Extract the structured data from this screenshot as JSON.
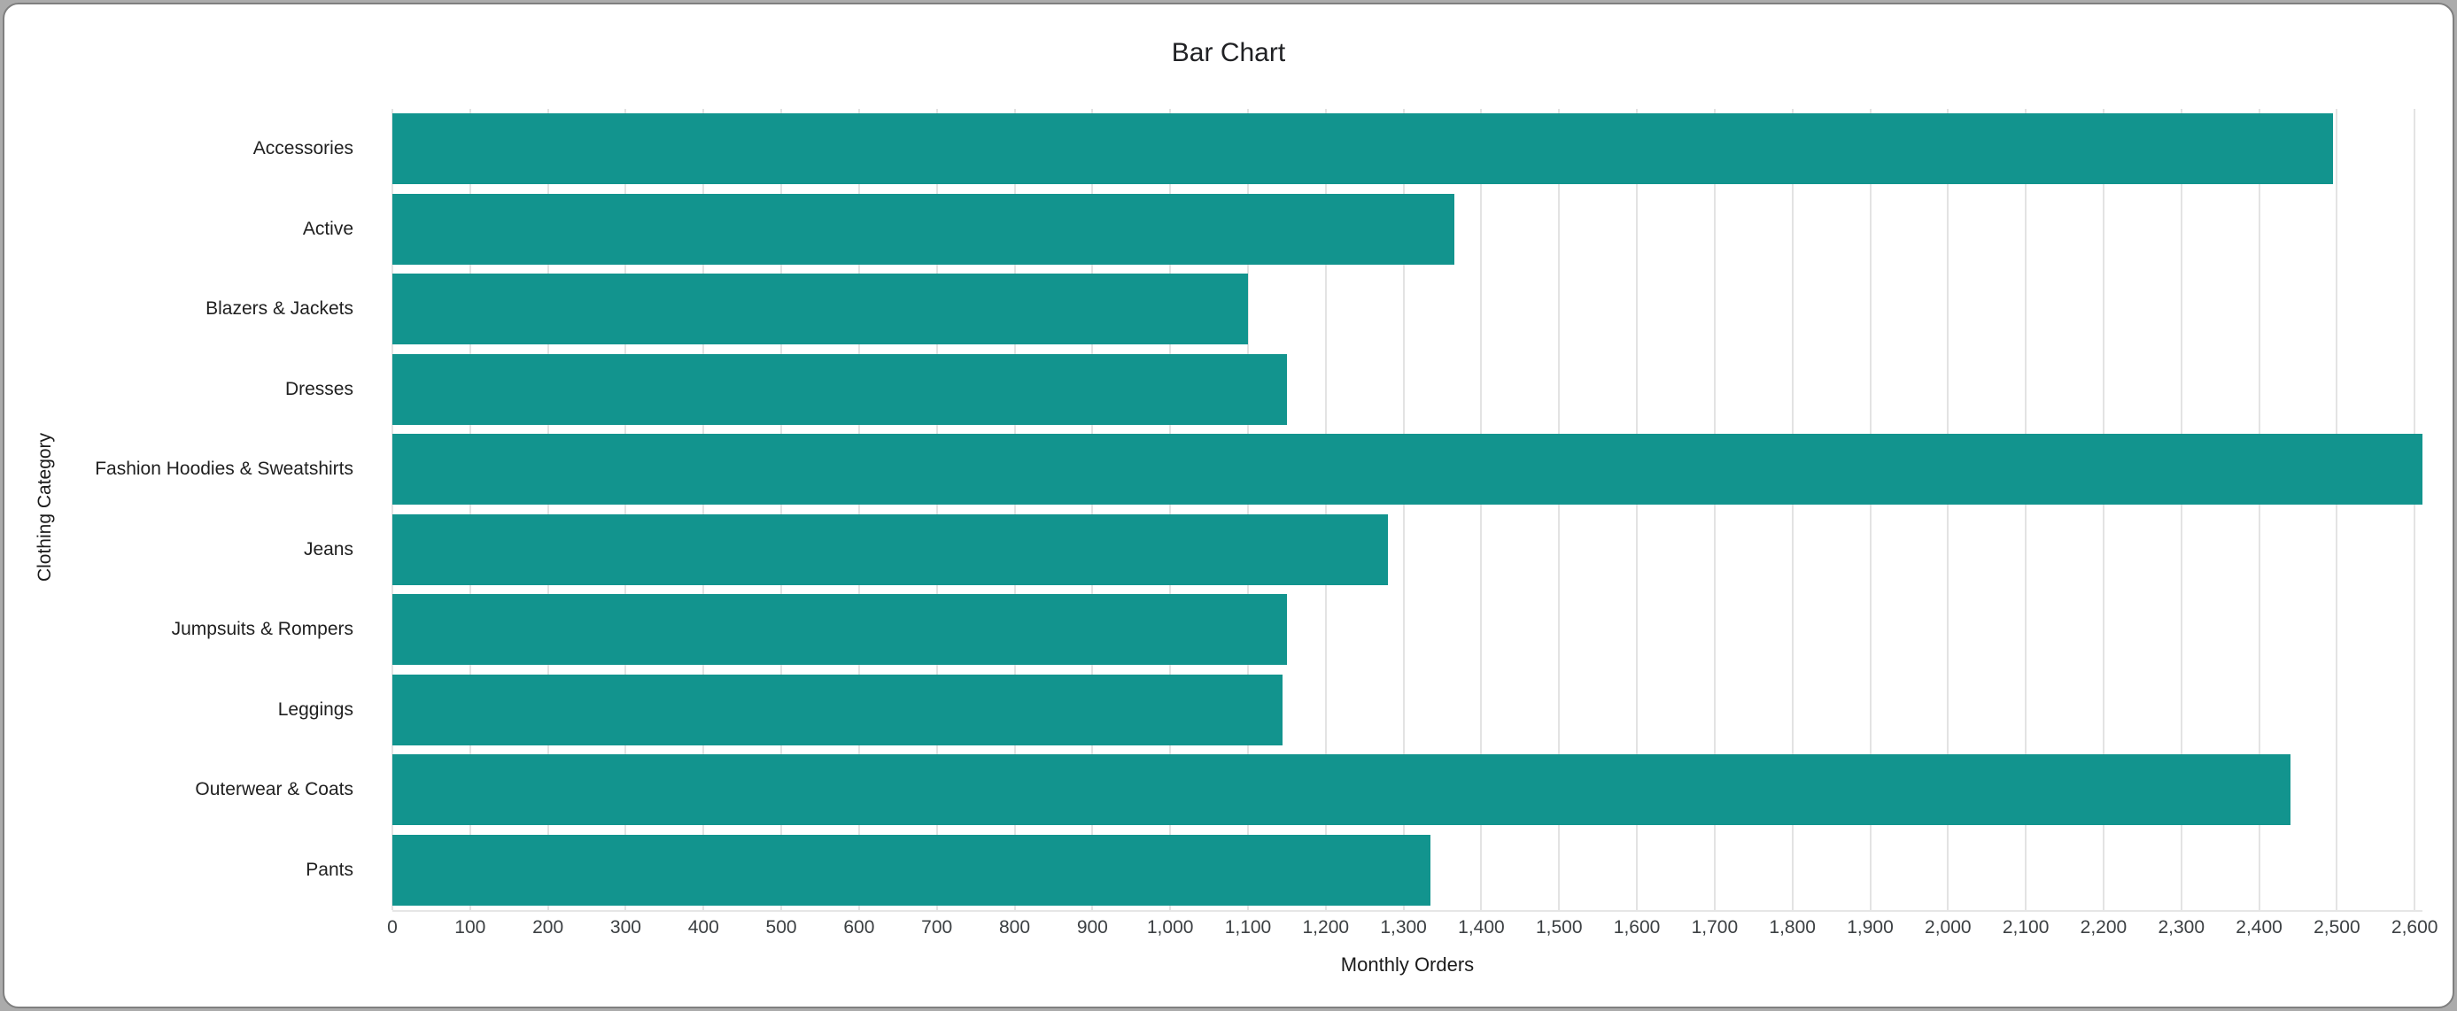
{
  "frame": {
    "background_color": "#ababab",
    "card_background": "#ffffff",
    "card_border_color": "#7f7f7f"
  },
  "chart_data": {
    "type": "bar",
    "orientation": "horizontal",
    "title": "Bar Chart",
    "xlabel": "Monthly Orders",
    "ylabel": "Clothing Category",
    "categories": [
      "Accessories",
      "Active",
      "Blazers & Jackets",
      "Dresses",
      "Fashion Hoodies & Sweatshirts",
      "Jeans",
      "Jumpsuits & Rompers",
      "Leggings",
      "Outerwear & Coats",
      "Pants"
    ],
    "values": [
      2495,
      1365,
      1100,
      1150,
      2610,
      1280,
      1150,
      1145,
      2440,
      1335
    ],
    "xlim": [
      0,
      2610
    ],
    "xtick_step": 100,
    "xtick_labels": [
      "0",
      "100",
      "200",
      "300",
      "400",
      "500",
      "600",
      "700",
      "800",
      "900",
      "1,000",
      "1,100",
      "1,200",
      "1,300",
      "1,400",
      "1,500",
      "1,600",
      "1,700",
      "1,800",
      "1,900",
      "2,000",
      "2,100",
      "2,200",
      "2,300",
      "2,400",
      "2,500",
      "2,600"
    ],
    "bar_color": "#12948e",
    "gridline_color": "#e3e3e3",
    "grid": true,
    "legend": "none"
  }
}
